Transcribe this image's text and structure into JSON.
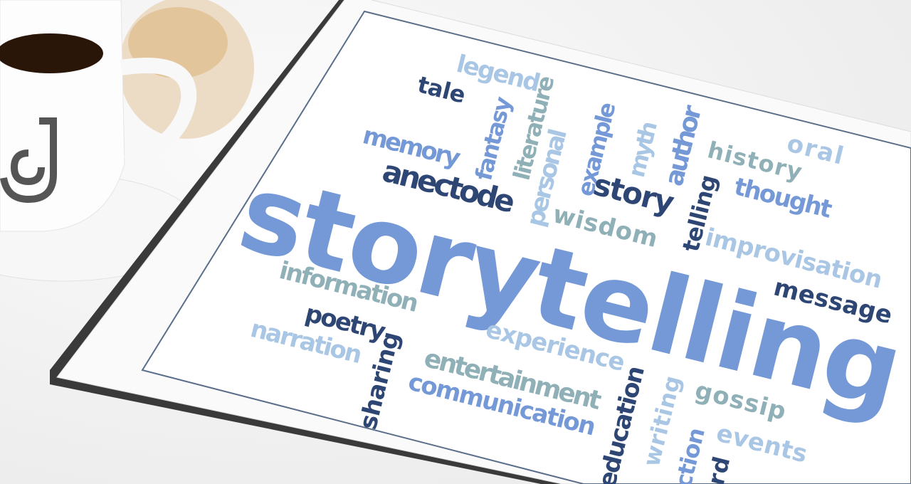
{
  "word_cloud": {
    "words": [
      "legend",
      "tale",
      "memory",
      "fantasy",
      "literature",
      "personal",
      "example",
      "myth",
      "author",
      "history",
      "oral",
      "anectode",
      "story",
      "telling",
      "thought",
      "storytelling",
      "wisdom",
      "improvisation",
      "information",
      "message",
      "poetry",
      "narration",
      "sharing",
      "experience",
      "entertainment",
      "communication",
      "education",
      "writing",
      "gossip",
      "iction",
      "events",
      "rd"
    ]
  }
}
